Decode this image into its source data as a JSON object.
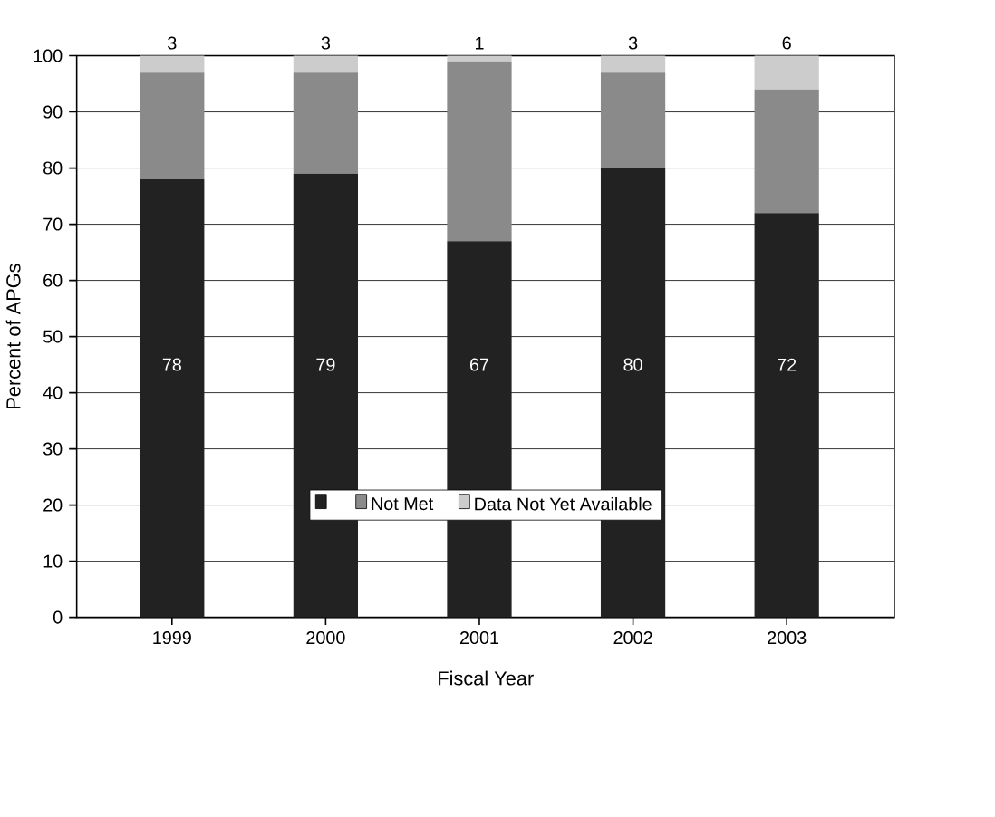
{
  "chart_data": {
    "type": "bar",
    "stacked": true,
    "xlabel": "Fiscal Year",
    "ylabel": "Percent of APGs",
    "categories": [
      "1999",
      "2000",
      "2001",
      "2002",
      "2003"
    ],
    "series": [
      {
        "color": "#222222",
        "values": [
          78,
          79,
          67,
          80,
          72
        ],
        "value_labels": [
          "78",
          "79",
          "67",
          "80",
          "72"
        ]
      },
      {
        "name": "Not Met",
        "color": "#8a8a8a",
        "values": [
          19,
          18,
          32,
          17,
          22
        ]
      },
      {
        "name": "Data Not Yet Available",
        "color": "#cccccc",
        "values": [
          3,
          3,
          1,
          3,
          6
        ],
        "value_labels": [
          "3",
          "3",
          "1",
          "3",
          "6"
        ]
      }
    ],
    "ylim": [
      0,
      100
    ],
    "yticks": [
      0,
      10,
      20,
      30,
      40,
      50,
      60,
      70,
      80,
      90,
      100
    ],
    "grid": "y",
    "legend": "bottom"
  }
}
